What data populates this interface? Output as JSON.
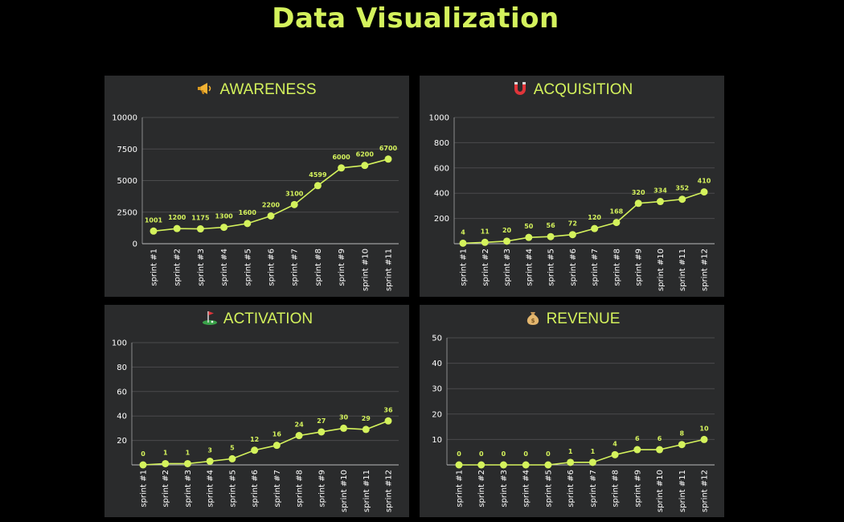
{
  "page_title": "Data Visualization",
  "colors": {
    "background": "#000000",
    "panel": "#2a2b2c",
    "accent": "#d4f25c",
    "gridline": "#4a4b4c",
    "tick_text": "#ffffff"
  },
  "panels": [
    {
      "title": "AWARENESS",
      "icon": "megaphone-icon"
    },
    {
      "title": "ACQUISITION",
      "icon": "magnet-icon"
    },
    {
      "title": "ACTIVATION",
      "icon": "golf-flag-icon"
    },
    {
      "title": "REVENUE",
      "icon": "money-bag-icon"
    }
  ],
  "chart_data": [
    {
      "type": "line",
      "title": "AWARENESS",
      "categories": [
        "sprint #1",
        "sprint #2",
        "sprint #3",
        "sprint #4",
        "sprint #5",
        "sprint #6",
        "sprint #7",
        "sprint #8",
        "sprint #9",
        "sprint #10",
        "sprint #11"
      ],
      "series": [
        {
          "values": [
            1001,
            1200,
            1175,
            1300,
            1600,
            2200,
            3100,
            4599,
            6000,
            6200,
            6700
          ]
        }
      ],
      "ylim": [
        0,
        10000
      ],
      "yticks": [
        0,
        2500,
        5000,
        7500,
        10000
      ],
      "grid": true,
      "data_labels": true
    },
    {
      "type": "line",
      "title": "ACQUISITION",
      "categories": [
        "sprint #1",
        "sprint #2",
        "sprint #3",
        "sprint #4",
        "sprint #5",
        "sprint #6",
        "sprint #7",
        "sprint #8",
        "sprint #9",
        "sprint #10",
        "sprint #11",
        "sprint #12"
      ],
      "series": [
        {
          "values": [
            4,
            11,
            20,
            50,
            56,
            72,
            120,
            168,
            320,
            334,
            352,
            410
          ]
        }
      ],
      "ylim": [
        0,
        1000
      ],
      "yticks": [
        200,
        400,
        600,
        800,
        1000
      ],
      "grid": true,
      "data_labels": true
    },
    {
      "type": "line",
      "title": "ACTIVATION",
      "categories": [
        "sprint #1",
        "sprint #2",
        "sprint #3",
        "sprint #4",
        "sprint #5",
        "sprint #6",
        "sprint #7",
        "sprint #8",
        "sprint #9",
        "sprint #10",
        "sprint #11",
        "sprint #12"
      ],
      "series": [
        {
          "values": [
            0,
            1,
            1,
            3,
            5,
            12,
            16,
            24,
            27,
            30,
            29,
            36
          ]
        }
      ],
      "ylim": [
        0,
        100
      ],
      "yticks": [
        20,
        40,
        60,
        80,
        100
      ],
      "grid": true,
      "data_labels": true
    },
    {
      "type": "line",
      "title": "REVENUE",
      "categories": [
        "sprint #1",
        "sprint #2",
        "sprint #3",
        "sprint #4",
        "sprint #5",
        "sprint #6",
        "sprint #7",
        "sprint #8",
        "sprint #9",
        "sprint #10",
        "sprint #11",
        "sprint #12"
      ],
      "series": [
        {
          "values": [
            0,
            0,
            0,
            0,
            0,
            1,
            1,
            4,
            6,
            6,
            8,
            10
          ]
        }
      ],
      "ylim": [
        0,
        50
      ],
      "yticks": [
        10,
        20,
        30,
        40,
        50
      ],
      "grid": true,
      "data_labels": true
    }
  ]
}
